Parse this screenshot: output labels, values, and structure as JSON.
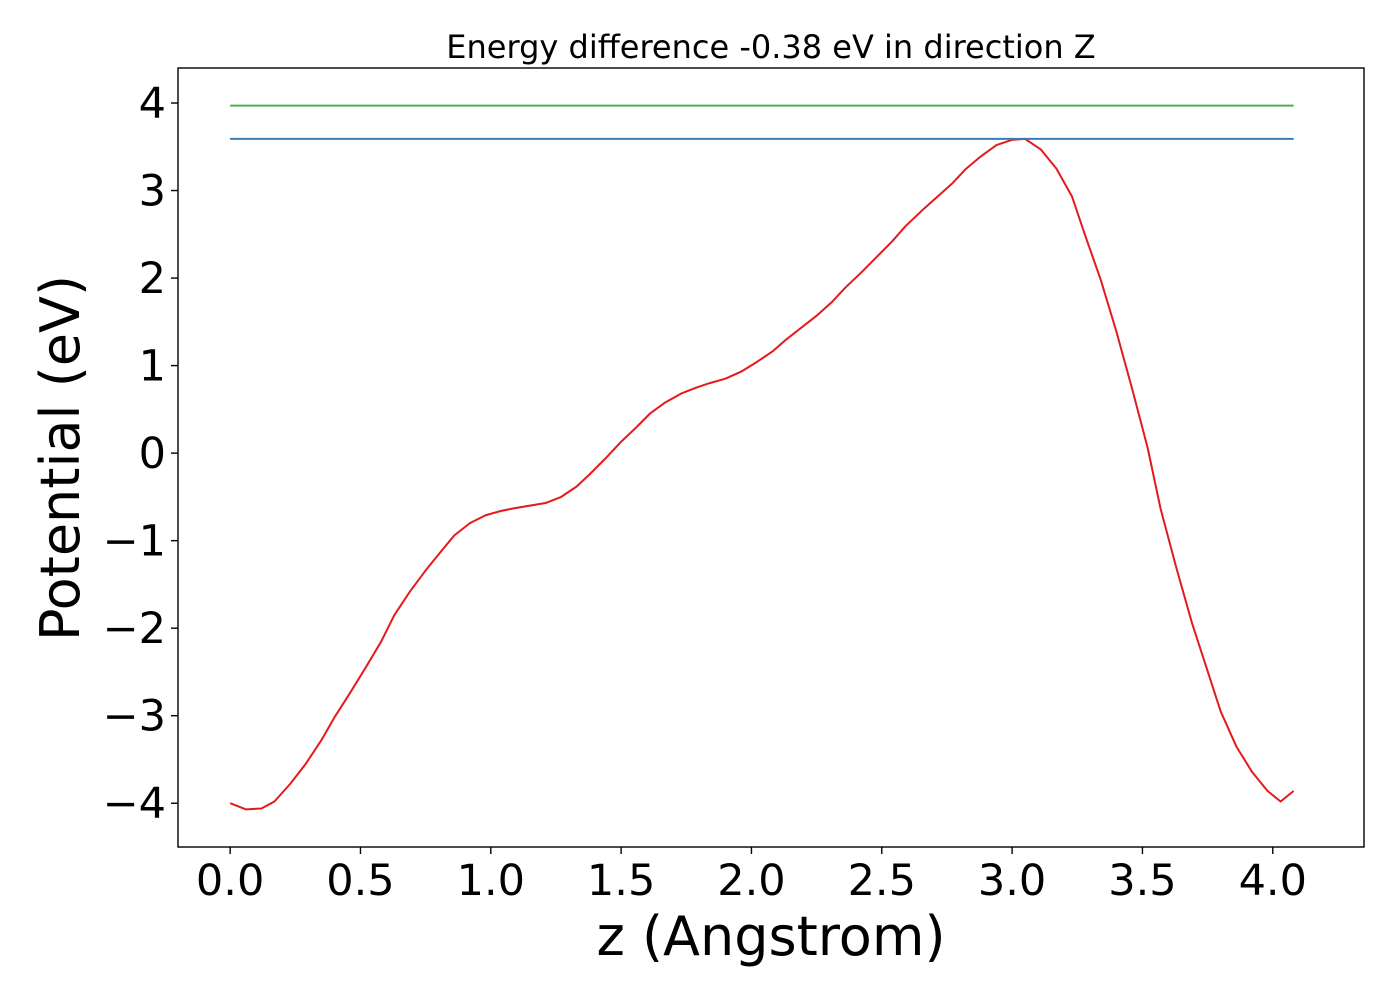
{
  "chart_data": {
    "type": "line",
    "title": "Energy difference -0.38 eV in direction Z",
    "xlabel": "z (Angstrom)",
    "ylabel": "Potential (eV)",
    "xlim": [
      -0.2,
      4.35
    ],
    "ylim": [
      -4.5,
      4.4
    ],
    "xticks": [
      0.0,
      0.5,
      1.0,
      1.5,
      2.0,
      2.5,
      3.0,
      3.5,
      4.0
    ],
    "xtick_labels": [
      "0.0",
      "0.5",
      "1.0",
      "1.5",
      "2.0",
      "2.5",
      "3.0",
      "3.5",
      "4.0"
    ],
    "yticks": [
      4,
      3,
      2,
      1,
      0,
      -1,
      -2,
      -3,
      -4
    ],
    "ytick_labels": [
      "4",
      "3",
      "2",
      "1",
      "0",
      "−1",
      "−2",
      "−3",
      "−4"
    ],
    "grid": false,
    "series": [
      {
        "color": "#e41a1c",
        "x": [
          0.0,
          0.06,
          0.12,
          0.17,
          0.23,
          0.29,
          0.35,
          0.4,
          0.46,
          0.52,
          0.58,
          0.63,
          0.69,
          0.75,
          0.81,
          0.86,
          0.92,
          0.98,
          1.04,
          1.09,
          1.15,
          1.21,
          1.27,
          1.33,
          1.38,
          1.44,
          1.5,
          1.56,
          1.61,
          1.67,
          1.73,
          1.79,
          1.84,
          1.9,
          1.96,
          2.02,
          2.08,
          2.13,
          2.19,
          2.25,
          2.31,
          2.36,
          2.42,
          2.48,
          2.54,
          2.59,
          2.65,
          2.71,
          2.77,
          2.82,
          2.88,
          2.94,
          3.0,
          3.05,
          3.11,
          3.17,
          3.23,
          3.28,
          3.34,
          3.4,
          3.46,
          3.52,
          3.57,
          3.63,
          3.69,
          3.75,
          3.8,
          3.86,
          3.92,
          3.98,
          4.03,
          4.08
        ],
        "y": [
          -4.0,
          -4.07,
          -4.06,
          -3.98,
          -3.78,
          -3.55,
          -3.28,
          -3.02,
          -2.74,
          -2.45,
          -2.15,
          -1.85,
          -1.58,
          -1.34,
          -1.12,
          -0.94,
          -0.8,
          -0.71,
          -0.66,
          -0.63,
          -0.6,
          -0.57,
          -0.5,
          -0.38,
          -0.24,
          -0.06,
          0.13,
          0.3,
          0.45,
          0.58,
          0.68,
          0.75,
          0.8,
          0.85,
          0.93,
          1.04,
          1.16,
          1.29,
          1.43,
          1.57,
          1.73,
          1.89,
          2.06,
          2.24,
          2.42,
          2.59,
          2.76,
          2.92,
          3.08,
          3.24,
          3.39,
          3.52,
          3.58,
          3.59,
          3.47,
          3.25,
          2.93,
          2.49,
          1.98,
          1.39,
          0.74,
          0.06,
          -0.64,
          -1.31,
          -1.94,
          -2.49,
          -2.95,
          -3.35,
          -3.64,
          -3.86,
          -3.98,
          -3.86
        ]
      },
      {
        "color": "#377eb8",
        "x": [
          0.0,
          4.08
        ],
        "y": [
          3.59,
          3.59
        ]
      },
      {
        "color": "#4daf4a",
        "x": [
          0.0,
          4.08
        ],
        "y": [
          3.97,
          3.97
        ]
      }
    ]
  }
}
